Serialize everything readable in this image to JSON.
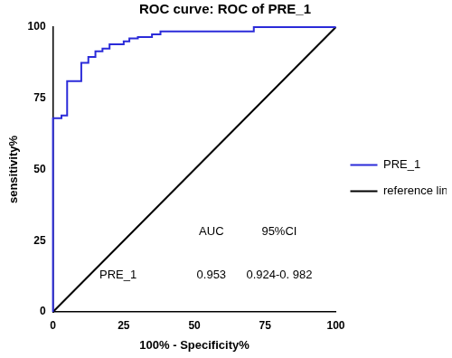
{
  "chart_data": {
    "type": "line",
    "title": "ROC curve: ROC of PRE_1",
    "x_label": "100% - Specificity%",
    "y_label": "sensitivity%",
    "xlim": [
      0,
      100
    ],
    "ylim": [
      0,
      100
    ],
    "xticks": [
      0,
      25,
      50,
      75,
      100
    ],
    "yticks": [
      0,
      25,
      50,
      75,
      100
    ],
    "grid": false,
    "legend": "right",
    "series": [
      {
        "name": "PRE_1",
        "color": "#2b2bd9",
        "line_style": "solid",
        "x": [
          0,
          0,
          3,
          3,
          5,
          5,
          10,
          10,
          12.5,
          12.5,
          15,
          15,
          17.5,
          17.5,
          20,
          20,
          25,
          25,
          27,
          27,
          30,
          30,
          35,
          35,
          38,
          38,
          71,
          71,
          100
        ],
        "values": [
          0,
          68,
          68,
          69,
          69,
          81,
          81,
          87.5,
          87.5,
          89.5,
          89.5,
          91.5,
          91.5,
          92.5,
          92.5,
          94,
          94,
          95,
          95,
          96,
          96,
          96.5,
          96.5,
          97.5,
          97.5,
          98.5,
          98.5,
          100,
          100
        ]
      },
      {
        "name": "reference line",
        "color": "#000000",
        "line_style": "solid",
        "x": [
          0,
          100
        ],
        "values": [
          0,
          100
        ]
      }
    ],
    "table": {
      "header": [
        "AUC",
        "95%CI"
      ],
      "rows": [
        {
          "name": "PRE_1",
          "auc": 0.953,
          "ci": "0.924-0. 982"
        }
      ]
    }
  }
}
